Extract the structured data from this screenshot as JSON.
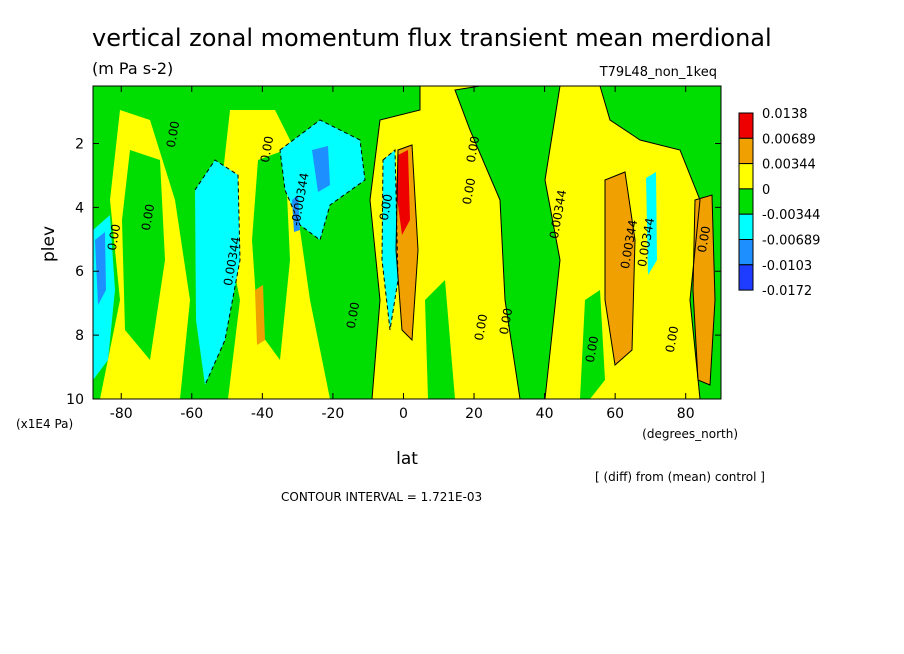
{
  "chart_data": {
    "type": "heatmap",
    "title": "vertical zonal momentum flux transient mean merdional",
    "units": "(m Pa s-2)",
    "run_label": "T79L48_non_1keq",
    "xlabel": "lat",
    "x_units": "(degrees_north)",
    "ylabel": "plev",
    "y_units": "(x1E4 Pa)",
    "x_ticks": [
      "-80",
      "-60",
      "-40",
      "-20",
      "0",
      "20",
      "40",
      "60",
      "80"
    ],
    "y_ticks": [
      "2",
      "4",
      "6",
      "8",
      "10"
    ],
    "xlim": [
      -88,
      90
    ],
    "ylim": [
      10,
      0.2
    ],
    "contour_interval_text": "CONTOUR INTERVAL = 1.721E-03",
    "diff_note": "[ (diff) from (mean) control ]",
    "legend": {
      "levels": [
        "0.0138",
        "0.00689",
        "0.00344",
        "0",
        "-0.00344",
        "-0.00689",
        "-0.0103",
        "-0.0172"
      ],
      "colors": [
        "#ee0000",
        "#f0a000",
        "#ffff00",
        "#00dd00",
        "#00ffff",
        "#1e8fff",
        "#1e3cff"
      ]
    },
    "contour_labels": [
      "0.00",
      "0.00",
      "0.00",
      "0.00",
      "0.00344",
      "-0.00344",
      "0.00",
      "0.00",
      "0.00",
      "0.00",
      "0.00",
      "0.00",
      "0.00344",
      "0.00344",
      "0.00344",
      "0.00",
      "0.00",
      "0.00"
    ],
    "features": [
      {
        "lat": -84,
        "plev_top": 4.5,
        "plev_bottom": 9.6,
        "value": -0.00689
      },
      {
        "lat": -55,
        "plev_top": 3.0,
        "plev_bottom": 9.2,
        "value": -0.00689
      },
      {
        "lat": -24,
        "plev_top": 1.8,
        "plev_bottom": 4.6,
        "value": -0.0103
      },
      {
        "lat": -5,
        "plev_top": 1.8,
        "plev_bottom": 6.8,
        "value": -0.00689
      },
      {
        "lat": -2,
        "plev_top": 2.0,
        "plev_bottom": 5.0,
        "value": 0.0138
      },
      {
        "lat": -1,
        "plev_top": 2.5,
        "plev_bottom": 8.5,
        "value": 0.00689
      },
      {
        "lat": 64,
        "plev_top": 2.5,
        "plev_bottom": 8.6,
        "value": 0.00689
      },
      {
        "lat": 68,
        "plev_top": 3.0,
        "plev_bottom": 6.5,
        "value": -0.00689
      },
      {
        "lat": 87,
        "plev_top": 3.5,
        "plev_bottom": 9.6,
        "value": 0.00689
      }
    ]
  }
}
